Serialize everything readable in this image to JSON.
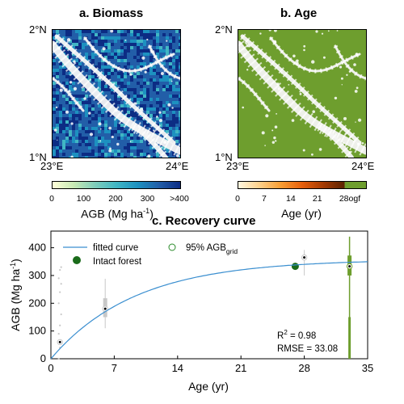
{
  "panel_a": {
    "title": "a. Biomass",
    "lat_top": "2°N",
    "lat_bottom": "1°N",
    "lon_left": "23°E",
    "lon_right": "24°E",
    "colorbar_ticks": [
      "0",
      "100",
      "200",
      "300",
      ">400"
    ],
    "colorbar_label": "AGB (Mg ha⁻¹)",
    "colors": [
      "#ffffd9",
      "#c7e9b4",
      "#7fcdbb",
      "#41b6c4",
      "#1d91c0",
      "#225ea8",
      "#0c2c84"
    ]
  },
  "panel_b": {
    "title": "b. Age",
    "lat_top": "2°N",
    "lat_bottom": "1°N",
    "lon_left": "23°E",
    "lon_right": "24°E",
    "colorbar_ticks": [
      "0",
      "7",
      "14",
      "21",
      "28",
      "ogf"
    ],
    "colorbar_label": "Age (yr)",
    "colors": [
      "#fff7e0",
      "#fdd08a",
      "#f99d32",
      "#e65f0d",
      "#a33a03",
      "#5a2202"
    ],
    "ogf_color": "#6e9e2e"
  },
  "chart_data": {
    "type": "line",
    "title": "c. Recovery curve",
    "xlabel": "Age (yr)",
    "ylabel": "AGB (Mg ha⁻¹)",
    "xlim": [
      0,
      35
    ],
    "ylim": [
      0,
      460
    ],
    "xticks": [
      0,
      7,
      14,
      21,
      28,
      35
    ],
    "yticks": [
      0,
      100,
      200,
      300,
      400
    ],
    "grid": false,
    "legend_position": "top-left",
    "legend": {
      "fitted_curve": "fitted curve",
      "agb_grid_prefix": "95% AGB",
      "agb_grid_sub": "grid",
      "intact_forest": "Intact forest"
    },
    "fitted_curve": {
      "asymptote": 358,
      "rate": 0.107,
      "x": [
        0,
        1,
        2,
        4,
        6,
        8,
        10,
        14,
        18,
        21,
        25,
        28,
        33,
        35
      ],
      "color": "#3b8fd0"
    },
    "box_plots": [
      {
        "x": 1,
        "median": 60,
        "points_y": [
          0,
          40,
          60,
          90,
          120,
          160,
          200,
          240,
          270,
          290,
          320,
          330
        ]
      },
      {
        "x": 6,
        "median": 180,
        "q1": 150,
        "q3": 218,
        "whisker_low": 110,
        "whisker_high": 288
      },
      {
        "x": 28,
        "median": 365,
        "q1": 358,
        "q3": 372,
        "whisker_low": 300,
        "whisker_high": 392
      },
      {
        "x": 33,
        "median": 333,
        "q1": 300,
        "q3": 372,
        "whisker_low": 0,
        "whisker_high": 440
      }
    ],
    "intact_forest": [
      {
        "x": 27,
        "y": 333
      }
    ],
    "stats": {
      "r2": "R² = 0.98",
      "rmse": "RMSE = 33.08"
    },
    "colors": {
      "box": "#c8c8c8",
      "intact": "#1a6b1a",
      "ogf_box": "#6e9e2e"
    }
  }
}
